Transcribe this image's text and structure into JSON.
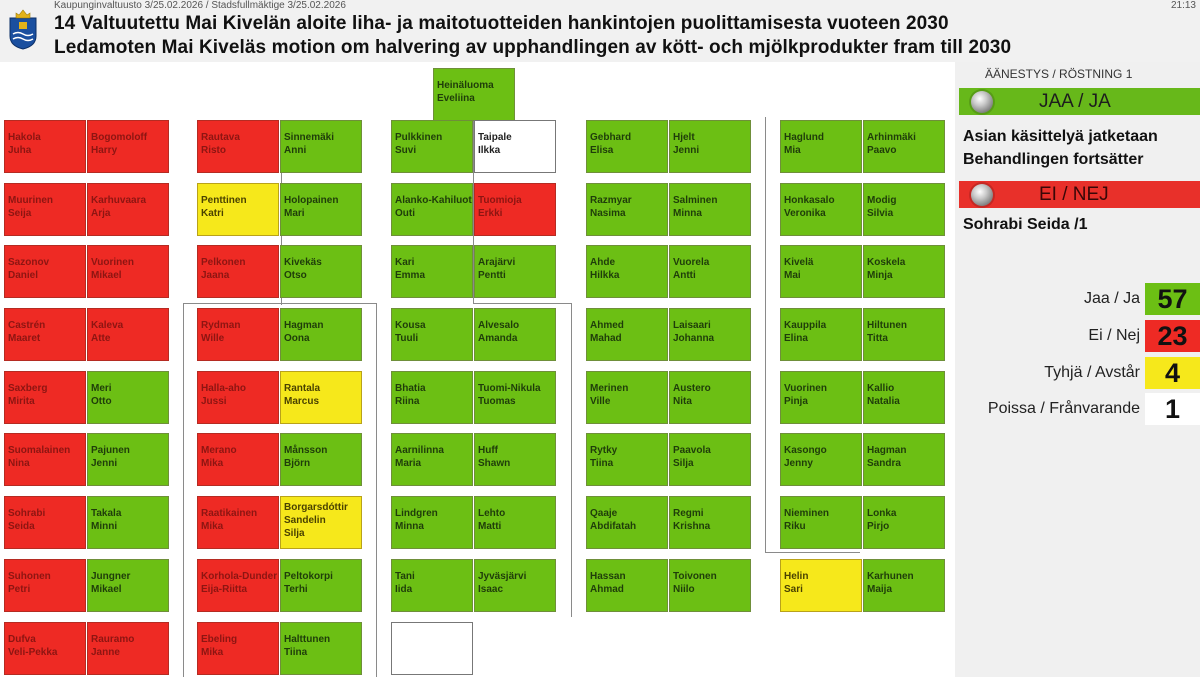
{
  "header": {
    "breadcrumb": "Kaupunginvaltuusto 3/25.02.2026  /  Stadsfullmäktige 3/25.02.2026",
    "clock": "21:13",
    "title_fi": "14 Valtuutettu Mai Kivelän aloite liha- ja maitotuotteiden hankintojen puolittamisesta vuoteen 2030",
    "title_sv": "Ledamoten Mai Kiveläs motion om halvering av upphandlingen av kött- och mjölkprodukter fram till 2030"
  },
  "colors": {
    "jaa": "#6cbf14",
    "ei": "#ee2a24",
    "tyhja": "#f6e81b",
    "poissa": "#ffffff"
  },
  "floor": {
    "seats": [
      {
        "id": "heinaluoma",
        "first": "Heinäluoma",
        "second": "Eveliina",
        "vote": "jaa"
      },
      {
        "id": "hakola",
        "first": "Hakola",
        "second": "Juha",
        "vote": "ei"
      },
      {
        "id": "bogomoloff",
        "first": "Bogomoloff",
        "second": "Harry",
        "vote": "ei"
      },
      {
        "id": "rautava",
        "first": "Rautava",
        "second": "Risto",
        "vote": "ei"
      },
      {
        "id": "sinnemaki",
        "first": "Sinnemäki",
        "second": "Anni",
        "vote": "jaa"
      },
      {
        "id": "pulkkinen",
        "first": "Pulkkinen",
        "second": "Suvi",
        "vote": "jaa"
      },
      {
        "id": "taipale",
        "first": "Taipale",
        "second": "Ilkka",
        "vote": "empty"
      },
      {
        "id": "gebhard",
        "first": "Gebhard",
        "second": "Elisa",
        "vote": "jaa"
      },
      {
        "id": "hjelt",
        "first": "Hjelt",
        "second": "Jenni",
        "vote": "jaa"
      },
      {
        "id": "haglund",
        "first": "Haglund",
        "second": "Mia",
        "vote": "jaa"
      },
      {
        "id": "arhinmaki",
        "first": "Arhinmäki",
        "second": "Paavo",
        "vote": "jaa"
      },
      {
        "id": "muurinen",
        "first": "Muurinen",
        "second": "Seija",
        "vote": "ei"
      },
      {
        "id": "karhuvaara",
        "first": "Karhuvaara",
        "second": "Arja",
        "vote": "ei"
      },
      {
        "id": "penttinen",
        "first": "Penttinen",
        "second": "Katri",
        "vote": "tyhja"
      },
      {
        "id": "holopainen",
        "first": "Holopainen",
        "second": "Mari",
        "vote": "jaa"
      },
      {
        "id": "alanko",
        "first": "Alanko-Kahiluoto",
        "second": "Outi",
        "vote": "jaa"
      },
      {
        "id": "tuomioja",
        "first": "Tuomioja",
        "second": "Erkki",
        "vote": "ei"
      },
      {
        "id": "razmyar",
        "first": "Razmyar",
        "second": "Nasima",
        "vote": "jaa"
      },
      {
        "id": "salminen",
        "first": "Salminen",
        "second": "Minna",
        "vote": "jaa"
      },
      {
        "id": "honkasalo",
        "first": "Honkasalo",
        "second": "Veronika",
        "vote": "jaa"
      },
      {
        "id": "modig",
        "first": "Modig",
        "second": "Silvia",
        "vote": "jaa"
      },
      {
        "id": "sazonov",
        "first": "Sazonov",
        "second": "Daniel",
        "vote": "ei"
      },
      {
        "id": "vuorinen",
        "first": "Vuorinen",
        "second": "Mikael",
        "vote": "ei"
      },
      {
        "id": "pelkonen",
        "first": "Pelkonen",
        "second": "Jaana",
        "vote": "ei"
      },
      {
        "id": "kivekas",
        "first": "Kivekäs",
        "second": "Otso",
        "vote": "jaa"
      },
      {
        "id": "kari",
        "first": "Kari",
        "second": "Emma",
        "vote": "jaa"
      },
      {
        "id": "arajarvi",
        "first": "Arajärvi",
        "second": "Pentti",
        "vote": "jaa"
      },
      {
        "id": "ahde",
        "first": "Ahde",
        "second": "Hilkka",
        "vote": "jaa"
      },
      {
        "id": "vuorela",
        "first": "Vuorela",
        "second": "Antti",
        "vote": "jaa"
      },
      {
        "id": "kivela",
        "first": "Kivelä",
        "second": "Mai",
        "vote": "jaa"
      },
      {
        "id": "koskela",
        "first": "Koskela",
        "second": "Minja",
        "vote": "jaa"
      },
      {
        "id": "castren",
        "first": "Castrén",
        "second": "Maaret",
        "vote": "ei"
      },
      {
        "id": "kaleva",
        "first": "Kaleva",
        "second": "Atte",
        "vote": "ei"
      },
      {
        "id": "rydman",
        "first": "Rydman",
        "second": "Wille",
        "vote": "ei"
      },
      {
        "id": "hagman_o",
        "first": "Hagman",
        "second": "Oona",
        "vote": "jaa"
      },
      {
        "id": "kousa",
        "first": "Kousa",
        "second": "Tuuli",
        "vote": "jaa"
      },
      {
        "id": "alvesalo",
        "first": "Alvesalo",
        "second": "Amanda",
        "vote": "jaa"
      },
      {
        "id": "ahmed",
        "first": "Ahmed",
        "second": "Mahad",
        "vote": "jaa"
      },
      {
        "id": "laisaari",
        "first": "Laisaari",
        "second": "Johanna",
        "vote": "jaa"
      },
      {
        "id": "kauppila",
        "first": "Kauppila",
        "second": "Elina",
        "vote": "jaa"
      },
      {
        "id": "hiltunen",
        "first": "Hiltunen",
        "second": "Titta",
        "vote": "jaa"
      },
      {
        "id": "saxberg",
        "first": "Saxberg",
        "second": "Mirita",
        "vote": "ei"
      },
      {
        "id": "meri",
        "first": "Meri",
        "second": "Otto",
        "vote": "jaa"
      },
      {
        "id": "hallaaho",
        "first": "Halla-aho",
        "second": "Jussi",
        "vote": "ei"
      },
      {
        "id": "rantala",
        "first": "Rantala",
        "second": "Marcus",
        "vote": "tyhja"
      },
      {
        "id": "bhatia",
        "first": "Bhatia",
        "second": "Riina",
        "vote": "jaa"
      },
      {
        "id": "tuomi",
        "first": "Tuomi-Nikula",
        "second": "Tuomas",
        "vote": "jaa"
      },
      {
        "id": "merinen",
        "first": "Merinen",
        "second": "Ville",
        "vote": "jaa"
      },
      {
        "id": "austero",
        "first": "Austero",
        "second": "Nita",
        "vote": "jaa"
      },
      {
        "id": "vuorinen_p",
        "first": "Vuorinen",
        "second": "Pinja",
        "vote": "jaa"
      },
      {
        "id": "kallio",
        "first": "Kallio",
        "second": "Natalia",
        "vote": "jaa"
      },
      {
        "id": "suomalainen",
        "first": "Suomalainen",
        "second": "Nina",
        "vote": "ei"
      },
      {
        "id": "pajunen",
        "first": "Pajunen",
        "second": "Jenni",
        "vote": "jaa"
      },
      {
        "id": "merano",
        "first": "Merano",
        "second": "Mika",
        "vote": "ei"
      },
      {
        "id": "mansson",
        "first": "Månsson",
        "second": "Björn",
        "vote": "jaa"
      },
      {
        "id": "aarnilinna",
        "first": "Aarnilinna",
        "second": "Maria",
        "vote": "jaa"
      },
      {
        "id": "huff",
        "first": "Huff",
        "second": "Shawn",
        "vote": "jaa"
      },
      {
        "id": "rytky",
        "first": "Rytky",
        "second": "Tiina",
        "vote": "jaa"
      },
      {
        "id": "paavola",
        "first": "Paavola",
        "second": "Silja",
        "vote": "jaa"
      },
      {
        "id": "kasongo",
        "first": "Kasongo",
        "second": "Jenny",
        "vote": "jaa"
      },
      {
        "id": "hagman_s",
        "first": "Hagman",
        "second": "Sandra",
        "vote": "jaa"
      },
      {
        "id": "sohrabi",
        "first": "Sohrabi",
        "second": "Seida",
        "vote": "ei"
      },
      {
        "id": "takala",
        "first": "Takala",
        "second": "Minni",
        "vote": "jaa"
      },
      {
        "id": "raatikainen",
        "first": "Raatikainen",
        "second": "Mika",
        "vote": "ei"
      },
      {
        "id": "borgarsdottir",
        "first": "Borgarsdóttir",
        "second": "Sandelin",
        "third": "Silja",
        "vote": "tyhja"
      },
      {
        "id": "lindgren",
        "first": "Lindgren",
        "second": "Minna",
        "vote": "jaa"
      },
      {
        "id": "lehto",
        "first": "Lehto",
        "second": "Matti",
        "vote": "jaa"
      },
      {
        "id": "qaaje",
        "first": "Qaaje",
        "second": "Abdifatah",
        "vote": "jaa"
      },
      {
        "id": "regmi",
        "first": "Regmi",
        "second": "Krishna",
        "vote": "jaa"
      },
      {
        "id": "nieminen",
        "first": "Nieminen",
        "second": "Riku",
        "vote": "jaa"
      },
      {
        "id": "lonka",
        "first": "Lonka",
        "second": "Pirjo",
        "vote": "jaa"
      },
      {
        "id": "suhonen",
        "first": "Suhonen",
        "second": "Petri",
        "vote": "ei"
      },
      {
        "id": "jungner",
        "first": "Jungner",
        "second": "Mikael",
        "vote": "jaa"
      },
      {
        "id": "korhola",
        "first": "Korhola-Dunder",
        "second": "Eija-Riitta",
        "vote": "ei"
      },
      {
        "id": "peltokorpi",
        "first": "Peltokorpi",
        "second": "Terhi",
        "vote": "jaa"
      },
      {
        "id": "tani",
        "first": "Tani",
        "second": "Iida",
        "vote": "jaa"
      },
      {
        "id": "jyvasjarvi",
        "first": "Jyväsjärvi",
        "second": "Isaac",
        "vote": "jaa"
      },
      {
        "id": "hassan",
        "first": "Hassan",
        "second": "Ahmad",
        "vote": "jaa"
      },
      {
        "id": "toivonen",
        "first": "Toivonen",
        "second": "Niilo",
        "vote": "jaa"
      },
      {
        "id": "helin",
        "first": "Helin",
        "second": "Sari",
        "vote": "tyhja"
      },
      {
        "id": "karhunen",
        "first": "Karhunen",
        "second": "Maija",
        "vote": "jaa"
      },
      {
        "id": "dufva",
        "first": "Dufva",
        "second": "Veli-Pekka",
        "vote": "ei"
      },
      {
        "id": "rauramo",
        "first": "Rauramo",
        "second": "Janne",
        "vote": "ei"
      },
      {
        "id": "ebeling",
        "first": "Ebeling",
        "second": "Mika",
        "vote": "ei"
      },
      {
        "id": "halttunen",
        "first": "Halttunen",
        "second": "Tiina",
        "vote": "jaa"
      },
      {
        "id": "empty_seat",
        "first": "",
        "second": "",
        "vote": "empty"
      }
    ]
  },
  "panel": {
    "vote_round": "ÄÄNESTYS / RÖSTNING 1",
    "yes_label": "JAA / JA",
    "yes_result_fi": "Asian käsittelyä jatketaan",
    "yes_result_sv": "Behandlingen fortsätter",
    "no_label": "EI / NEJ",
    "no_result": "Sohrabi Seida /1",
    "counts": [
      {
        "label": "Jaa / Ja",
        "value": "57",
        "color": "#6cbf14"
      },
      {
        "label": "Ei / Nej",
        "value": "23",
        "color": "#ee2a24"
      },
      {
        "label": "Tyhjä / Avstår",
        "value": "4",
        "color": "#f6e81b"
      },
      {
        "label": "Poissa / Frånvarande",
        "value": "1",
        "color": "#ffffff"
      }
    ]
  }
}
